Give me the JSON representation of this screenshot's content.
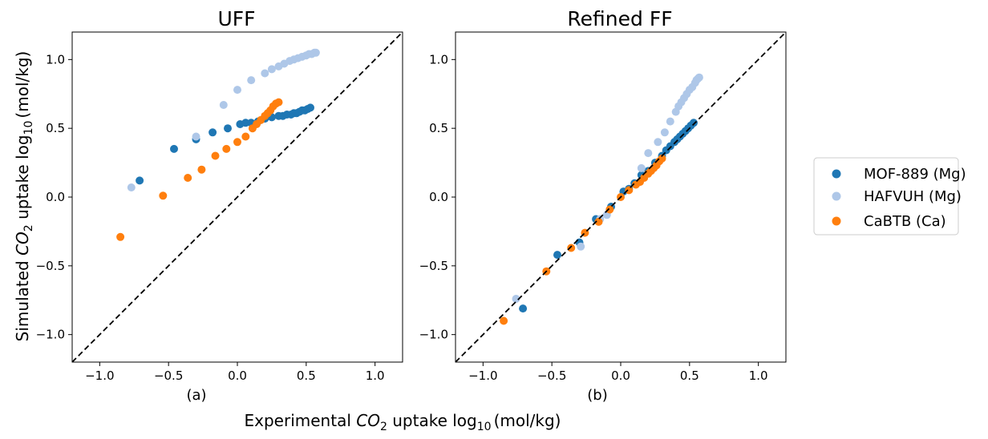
{
  "figure": {
    "ylabel_pre": "Simulated ",
    "ylabel_co2": "CO",
    "ylabel_sub2": "2",
    "ylabel_mid": " uptake log",
    "ylabel_sub10": "10",
    "ylabel_unit": "(mol/kg)",
    "xlabel_pre": "Experimental ",
    "xlabel_co2": "CO",
    "xlabel_sub2": "2",
    "xlabel_mid": " uptake log",
    "xlabel_sub10": "10",
    "xlabel_unit": "(mol/kg)"
  },
  "legend": [
    {
      "label": "MOF-889 (Mg)",
      "color": "#1f77b4"
    },
    {
      "label": "HAFVUH (Mg)",
      "color": "#aec7e8"
    },
    {
      "label": "CaBTB (Ca)",
      "color": "#ff7f0e"
    }
  ],
  "chart_data": [
    {
      "type": "scatter",
      "title": "UFF",
      "sublabel": "(a)",
      "xlim": [
        -1.2,
        1.2
      ],
      "ylim": [
        -1.2,
        1.2
      ],
      "xticks": [
        "-1.0",
        "-0.5",
        "0.0",
        "0.5",
        "1.0"
      ],
      "yticks": [
        "-1.0",
        "-0.5",
        "0.0",
        "0.5",
        "1.0"
      ],
      "tick_values": [
        -1.0,
        -0.5,
        0.0,
        0.5,
        1.0
      ],
      "reference_line": "y = x (dashed)",
      "series": [
        {
          "name": "MOF-889 (Mg)",
          "color": "#1f77b4",
          "x": [
            -0.71,
            -0.46,
            -0.3,
            -0.18,
            -0.07,
            0.02,
            0.06,
            0.1,
            0.15,
            0.2,
            0.25,
            0.3,
            0.33,
            0.36,
            0.39,
            0.41,
            0.43,
            0.45,
            0.47,
            0.49,
            0.51,
            0.53
          ],
          "y": [
            0.12,
            0.35,
            0.42,
            0.47,
            0.5,
            0.53,
            0.54,
            0.54,
            0.55,
            0.57,
            0.58,
            0.59,
            0.59,
            0.6,
            0.6,
            0.61,
            0.61,
            0.62,
            0.63,
            0.63,
            0.64,
            0.65
          ]
        },
        {
          "name": "HAFVUH (Mg)",
          "color": "#aec7e8",
          "x": [
            -0.77,
            -0.3,
            -0.1,
            0.0,
            0.1,
            0.2,
            0.25,
            0.3,
            0.34,
            0.38,
            0.41,
            0.44,
            0.47,
            0.5,
            0.52,
            0.54,
            0.56,
            0.57
          ],
          "y": [
            0.07,
            0.44,
            0.67,
            0.78,
            0.85,
            0.9,
            0.93,
            0.95,
            0.97,
            0.99,
            1.0,
            1.01,
            1.02,
            1.03,
            1.04,
            1.04,
            1.05,
            1.05
          ]
        },
        {
          "name": "CaBTB (Ca)",
          "color": "#ff7f0e",
          "x": [
            -0.85,
            -0.54,
            -0.36,
            -0.26,
            -0.16,
            -0.08,
            0.0,
            0.06,
            0.11,
            0.14,
            0.17,
            0.2,
            0.22,
            0.24,
            0.26,
            0.28,
            0.3
          ],
          "y": [
            -0.29,
            0.01,
            0.14,
            0.2,
            0.3,
            0.35,
            0.4,
            0.44,
            0.5,
            0.53,
            0.56,
            0.59,
            0.61,
            0.63,
            0.66,
            0.68,
            0.69
          ]
        }
      ]
    },
    {
      "type": "scatter",
      "title": "Refined FF",
      "sublabel": "(b)",
      "xlim": [
        -1.2,
        1.2
      ],
      "ylim": [
        -1.2,
        1.2
      ],
      "xticks": [
        "-1.0",
        "-0.5",
        "0.0",
        "0.5",
        "1.0"
      ],
      "yticks": [
        "-1.0",
        "-0.5",
        "0.0",
        "0.5",
        "1.0"
      ],
      "tick_values": [
        -1.0,
        -0.5,
        0.0,
        0.5,
        1.0
      ],
      "reference_line": "y = x (dashed)",
      "series": [
        {
          "name": "MOF-889 (Mg)",
          "color": "#1f77b4",
          "x": [
            -0.71,
            -0.46,
            -0.3,
            -0.18,
            -0.07,
            0.02,
            0.06,
            0.1,
            0.15,
            0.2,
            0.25,
            0.3,
            0.33,
            0.36,
            0.39,
            0.41,
            0.43,
            0.45,
            0.47,
            0.49,
            0.51,
            0.53
          ],
          "y": [
            -0.81,
            -0.42,
            -0.33,
            -0.16,
            -0.07,
            0.04,
            0.06,
            0.1,
            0.16,
            0.19,
            0.25,
            0.3,
            0.34,
            0.37,
            0.4,
            0.42,
            0.44,
            0.46,
            0.48,
            0.5,
            0.52,
            0.54
          ]
        },
        {
          "name": "HAFVUH (Mg)",
          "color": "#aec7e8",
          "x": [
            -0.76,
            -0.29,
            -0.15,
            -0.1,
            0.15,
            0.2,
            0.27,
            0.32,
            0.36,
            0.4,
            0.42,
            0.44,
            0.46,
            0.48,
            0.5,
            0.52,
            0.54,
            0.55,
            0.56,
            0.57
          ],
          "y": [
            -0.74,
            -0.36,
            -0.16,
            -0.13,
            0.21,
            0.32,
            0.4,
            0.47,
            0.55,
            0.62,
            0.66,
            0.69,
            0.72,
            0.75,
            0.78,
            0.8,
            0.83,
            0.85,
            0.86,
            0.87
          ]
        },
        {
          "name": "CaBTB (Ca)",
          "color": "#ff7f0e",
          "x": [
            -0.85,
            -0.54,
            -0.36,
            -0.26,
            -0.16,
            -0.08,
            0.0,
            0.06,
            0.11,
            0.14,
            0.17,
            0.2,
            0.22,
            0.24,
            0.26,
            0.28,
            0.3
          ],
          "y": [
            -0.9,
            -0.54,
            -0.37,
            -0.26,
            -0.18,
            -0.09,
            0.0,
            0.05,
            0.09,
            0.11,
            0.14,
            0.17,
            0.19,
            0.21,
            0.23,
            0.26,
            0.28
          ]
        }
      ]
    }
  ]
}
